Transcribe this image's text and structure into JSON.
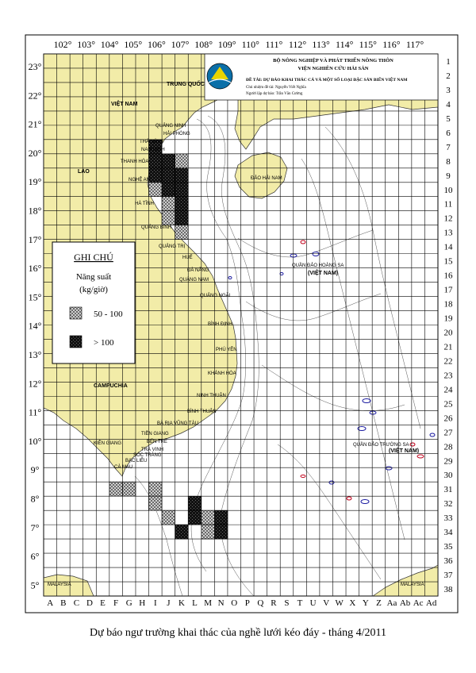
{
  "map": {
    "lon_labels": [
      "102°",
      "103°",
      "104°",
      "105°",
      "106°",
      "107°",
      "108°",
      "109°",
      "110°",
      "111°",
      "112°",
      "113°",
      "114°",
      "115°",
      "116°",
      "117°"
    ],
    "lat_labels": [
      "23°",
      "22°",
      "21°",
      "20°",
      "19°",
      "18°",
      "17°",
      "16°",
      "15°",
      "14°",
      "13°",
      "12°",
      "11°",
      "10°",
      "9°",
      "8°",
      "7°",
      "6°",
      "5°"
    ],
    "col_labels": [
      "A",
      "B",
      "C",
      "D",
      "E",
      "F",
      "G",
      "H",
      "I",
      "J",
      "K",
      "L",
      "M",
      "N",
      "O",
      "P",
      "Q",
      "R",
      "S",
      "T",
      "U",
      "V",
      "W",
      "X",
      "Y",
      "Z",
      "Aa",
      "Ab",
      "Ac",
      "Ad"
    ],
    "row_labels": [
      "1",
      "2",
      "3",
      "4",
      "5",
      "6",
      "7",
      "8",
      "9",
      "10",
      "11",
      "12",
      "13",
      "14",
      "15",
      "16",
      "17",
      "18",
      "19",
      "20",
      "21",
      "22",
      "23",
      "24",
      "25",
      "26",
      "27",
      "28",
      "29",
      "30",
      "31",
      "32",
      "33",
      "34",
      "35",
      "36",
      "37",
      "38"
    ],
    "places": {
      "trung_quoc": "TRUNG QUỐC",
      "viet_nam": "VIỆT NAM",
      "lao": "LÀO",
      "campuchia": "CAMPUCHIA",
      "dao_hai_nam": "ĐẢO HẢI NAM",
      "hoang_sa": "QUẦN ĐẢO HOÀNG SA",
      "hoang_sa_vn": "(VIỆT NAM)",
      "truong_sa": "QUẦN ĐẢO TRƯỜNG SA",
      "truong_sa_vn": "(VIỆT NAM)",
      "malaysia_w": "MALAYSIA",
      "malaysia_e": "MALAYSIA",
      "thanh_hoa": "THANH HÓA",
      "nghe_an": "NGHỆ AN",
      "ha_tinh": "HÀ TĨNH",
      "quang_binh": "QUẢNG BÌNH",
      "quang_tri": "QUẢNG TRỊ",
      "hue": "HUẾ",
      "quang_nam": "QUẢNG NAM",
      "quang_ngai": "QUẢNG NGÃI",
      "binh_dinh": "BÌNH ĐỊNH",
      "phu_yen": "PHÚ YÊN",
      "khanh_hoa": "KHÁNH HÒA",
      "ninh_thuan": "NINH THUẬN",
      "binh_thuan": "BÌNH THUẬN",
      "ba_ria_vt": "BÀ RỊA VŨNG TÀU",
      "tien_giang": "TIỀN GIANG",
      "ben_tre": "BẾN TRE",
      "tra_vinh": "TRÀ VINH",
      "soc_trang": "SÓC TRĂNG",
      "bac_lieu": "BẠC LIÊU",
      "ca_mau": "CÀ MAU",
      "kien_giang": "KIÊN GIANG",
      "nam_dinh": "NAM ĐỊNH",
      "thai_binh": "THÁI BÌNH",
      "quang_ninh": "QUẢNG NINH",
      "hai_phong": "HẢI PHÒNG",
      "da_nang": "ĐÀ NẴNG"
    },
    "header": {
      "ministry": "BỘ NÔNG NGHIỆP VÀ PHÁT TRIỂN NÔNG THÔN",
      "institute": "VIỆN NGHIÊN CỨU HẢI SẢN",
      "project": "ĐỀ TÀI: DỰ BÁO KHAI THÁC CÁ VÀ MỘT SỐ LOẠI ĐẶC SẢN BIỂN VIỆT NAM",
      "lead": "Chủ nhiệm đề tài: Nguyễn Viết Nghĩa",
      "forecaster": "Người lập dự báo: Trần Văn Cường"
    },
    "legend": {
      "title": "GHI CHÚ",
      "subtitle1": "Năng suất",
      "subtitle2": "(kg/giờ)",
      "class_low": "50 - 100",
      "class_high": "> 100"
    },
    "colors": {
      "land": "#f2eca8",
      "sea": "#ffffff",
      "grid": "#000000",
      "contour": "#444444",
      "reef_blue": "#1a1aa0",
      "reef_red": "#c0001a"
    },
    "caption": "Dự báo ngư trường khai thác của nghề lưới kéo đáy - tháng 4/2011"
  },
  "chart_data": {
    "type": "heatmap",
    "grid": {
      "columns": 30,
      "rows": 38
    },
    "units": "kg/giờ",
    "classes": [
      "50 - 100",
      "> 100"
    ],
    "cells": [
      {
        "col": "I",
        "row": 7,
        "class": "> 100"
      },
      {
        "col": "I",
        "row": 8,
        "class": "> 100"
      },
      {
        "col": "J",
        "row": 8,
        "class": "> 100"
      },
      {
        "col": "K",
        "row": 8,
        "class": "50 - 100"
      },
      {
        "col": "I",
        "row": 9,
        "class": "> 100"
      },
      {
        "col": "J",
        "row": 9,
        "class": "> 100"
      },
      {
        "col": "K",
        "row": 9,
        "class": "> 100"
      },
      {
        "col": "I",
        "row": 10,
        "class": "50 - 100"
      },
      {
        "col": "J",
        "row": 10,
        "class": "> 100"
      },
      {
        "col": "K",
        "row": 10,
        "class": "> 100"
      },
      {
        "col": "J",
        "row": 11,
        "class": "50 - 100"
      },
      {
        "col": "K",
        "row": 11,
        "class": "> 100"
      },
      {
        "col": "J",
        "row": 12,
        "class": "50 - 100"
      },
      {
        "col": "K",
        "row": 12,
        "class": "> 100"
      },
      {
        "col": "K",
        "row": 13,
        "class": "50 - 100"
      },
      {
        "col": "F",
        "row": 31,
        "class": "50 - 100"
      },
      {
        "col": "G",
        "row": 31,
        "class": "50 - 100"
      },
      {
        "col": "I",
        "row": 31,
        "class": "50 - 100"
      },
      {
        "col": "I",
        "row": 32,
        "class": "50 - 100"
      },
      {
        "col": "L",
        "row": 32,
        "class": "> 100"
      },
      {
        "col": "J",
        "row": 33,
        "class": "50 - 100"
      },
      {
        "col": "L",
        "row": 33,
        "class": "> 100"
      },
      {
        "col": "M",
        "row": 33,
        "class": "50 - 100"
      },
      {
        "col": "N",
        "row": 33,
        "class": "> 100"
      },
      {
        "col": "K",
        "row": 34,
        "class": "> 100"
      },
      {
        "col": "M",
        "row": 34,
        "class": "50 - 100"
      },
      {
        "col": "N",
        "row": 34,
        "class": "> 100"
      }
    ]
  }
}
